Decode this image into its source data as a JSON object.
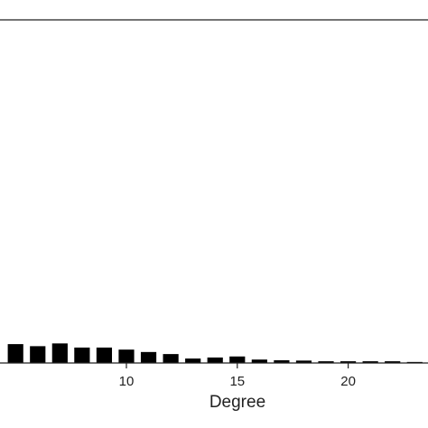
{
  "chart_data": {
    "type": "bar",
    "xlabel": "Degree",
    "ylabel": "",
    "title": "",
    "x_ticks": [
      10,
      15,
      20
    ],
    "xlim": [
      4.3,
      23.6
    ],
    "ylim": [
      0,
      100
    ],
    "grid": false,
    "colors": {
      "bar": "#000000",
      "axis": "#222222",
      "background": "#ffffff"
    },
    "x": [
      5,
      6,
      7,
      8,
      9,
      10,
      11,
      12,
      13,
      14,
      15,
      16,
      17,
      18,
      19,
      20,
      21,
      22,
      23
    ],
    "values": [
      5.5,
      4.9,
      5.7,
      4.5,
      4.5,
      3.9,
      3.2,
      2.6,
      1.3,
      1.6,
      1.9,
      1.0,
      0.8,
      0.7,
      0.5,
      0.5,
      0.5,
      0.5,
      0.3
    ]
  }
}
